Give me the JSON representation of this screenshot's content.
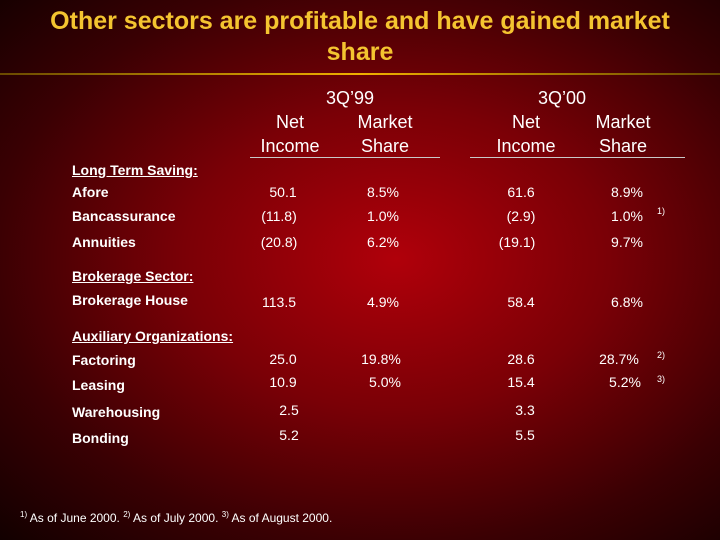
{
  "title": {
    "line1": "Other sectors are profitable and  have gained market",
    "line2": "share"
  },
  "periods": [
    {
      "label": "3Q’99",
      "col1": "Net",
      "col1b": "Income",
      "col2": "Market",
      "col2b": "Share"
    },
    {
      "label": "3Q’00",
      "col1": "Net",
      "col1b": "Income",
      "col2": "Market",
      "col2b": "Share"
    }
  ],
  "sections": [
    {
      "header": "Long Term Saving:"
    },
    {
      "header": "Brokerage Sector:"
    },
    {
      "header": "Auxiliary Organizations:"
    }
  ],
  "rows": [
    {
      "label": "Afore",
      "v": [
        "50.1",
        "8.5%",
        "61.6",
        "8.9%"
      ],
      "note": ""
    },
    {
      "label": "Bancassurance",
      "v": [
        "(11.8)",
        "1.0%",
        "(2.9)",
        "1.0%"
      ],
      "note": "1)"
    },
    {
      "label": "Annuities",
      "v": [
        "(20.8)",
        "6.2%",
        "(19.1)",
        "9.7%"
      ],
      "note": ""
    },
    {
      "label": "Brokerage House",
      "v": [
        "113.5",
        "4.9%",
        "58.4",
        "6.8%"
      ],
      "note": ""
    },
    {
      "label": "Factoring",
      "v": [
        "25.0",
        "19.8%",
        "28.6",
        "28.7%"
      ],
      "note": "2)"
    },
    {
      "label": "Leasing",
      "v": [
        "10.9",
        "5.0%",
        "15.4",
        "5.2%"
      ],
      "note": "3)"
    },
    {
      "label": "Warehousing",
      "v": [
        "2.5",
        "",
        "3.3",
        ""
      ],
      "note": ""
    },
    {
      "label": "Bonding",
      "v": [
        "5.2",
        "",
        "5.5",
        ""
      ],
      "note": ""
    }
  ],
  "footnotes": [
    {
      "mark": "1)",
      "text": "As of June 2000."
    },
    {
      "mark": "2)",
      "text": "As of July 2000."
    },
    {
      "mark": "3)",
      "text": "As of August 2000."
    }
  ]
}
